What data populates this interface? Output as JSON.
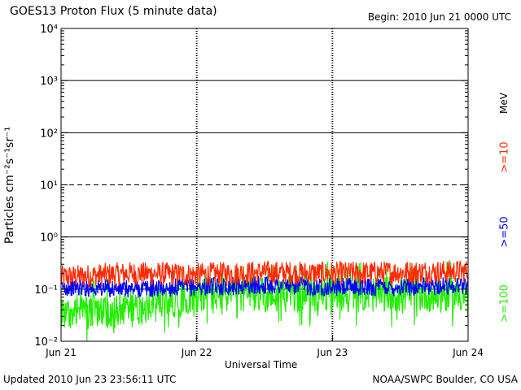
{
  "header": {
    "title": "GOES13 Proton Flux (5 minute data)",
    "begin": "Begin: 2010 Jun 21 0000 UTC"
  },
  "footer": {
    "updated": "Updated 2010 Jun 23 23:56:11 UTC",
    "credit": "NOAA/SWPC Boulder, CO USA"
  },
  "colors": {
    ">=10": "#ff2a00",
    ">=50": "#0000ff",
    ">=100": "#22ee00"
  },
  "chart_data": {
    "type": "line",
    "title": "GOES13 Proton Flux (5 minute data)",
    "xlabel": "Universal Time",
    "ylabel": "Particles cm⁻²s⁻¹sr⁻¹",
    "ylim": [
      0.01,
      10000
    ],
    "yscale": "log",
    "yticks": [
      "10⁻²",
      "10⁻¹",
      "10⁰",
      "10¹",
      "10²",
      "10³",
      "10⁴"
    ],
    "xlim": [
      "2010-06-21",
      "2010-06-24"
    ],
    "xticks": [
      "Jun 21",
      "Jun 22",
      "Jun 23",
      "Jun 24"
    ],
    "unit_label": "MeV",
    "threshold_lines": [
      {
        "value": 10,
        "style": "dashed"
      },
      {
        "value": 1,
        "style": "solid"
      },
      {
        "value": 100,
        "style": "solid"
      },
      {
        "value": 1000,
        "style": "solid"
      },
      {
        "value": 0.1,
        "style": "solid"
      }
    ],
    "series": [
      {
        "name": ">=10",
        "x": [
          "2010-06-21",
          "2010-06-21T12:00",
          "2010-06-22",
          "2010-06-22T12:00",
          "2010-06-23",
          "2010-06-23T12:00",
          "2010-06-24"
        ],
        "values": [
          0.17,
          0.2,
          0.19,
          0.21,
          0.2,
          0.21,
          0.22
        ]
      },
      {
        "name": ">=50",
        "x": [
          "2010-06-21",
          "2010-06-21T12:00",
          "2010-06-22",
          "2010-06-22T12:00",
          "2010-06-23",
          "2010-06-23T12:00",
          "2010-06-24"
        ],
        "values": [
          0.11,
          0.1,
          0.11,
          0.12,
          0.11,
          0.11,
          0.12
        ]
      },
      {
        "name": ">=100",
        "x": [
          "2010-06-21",
          "2010-06-21T12:00",
          "2010-06-22",
          "2010-06-22T12:00",
          "2010-06-23",
          "2010-06-23T12:00",
          "2010-06-24"
        ],
        "values": [
          0.035,
          0.04,
          0.08,
          0.08,
          0.08,
          0.08,
          0.08
        ]
      }
    ]
  }
}
